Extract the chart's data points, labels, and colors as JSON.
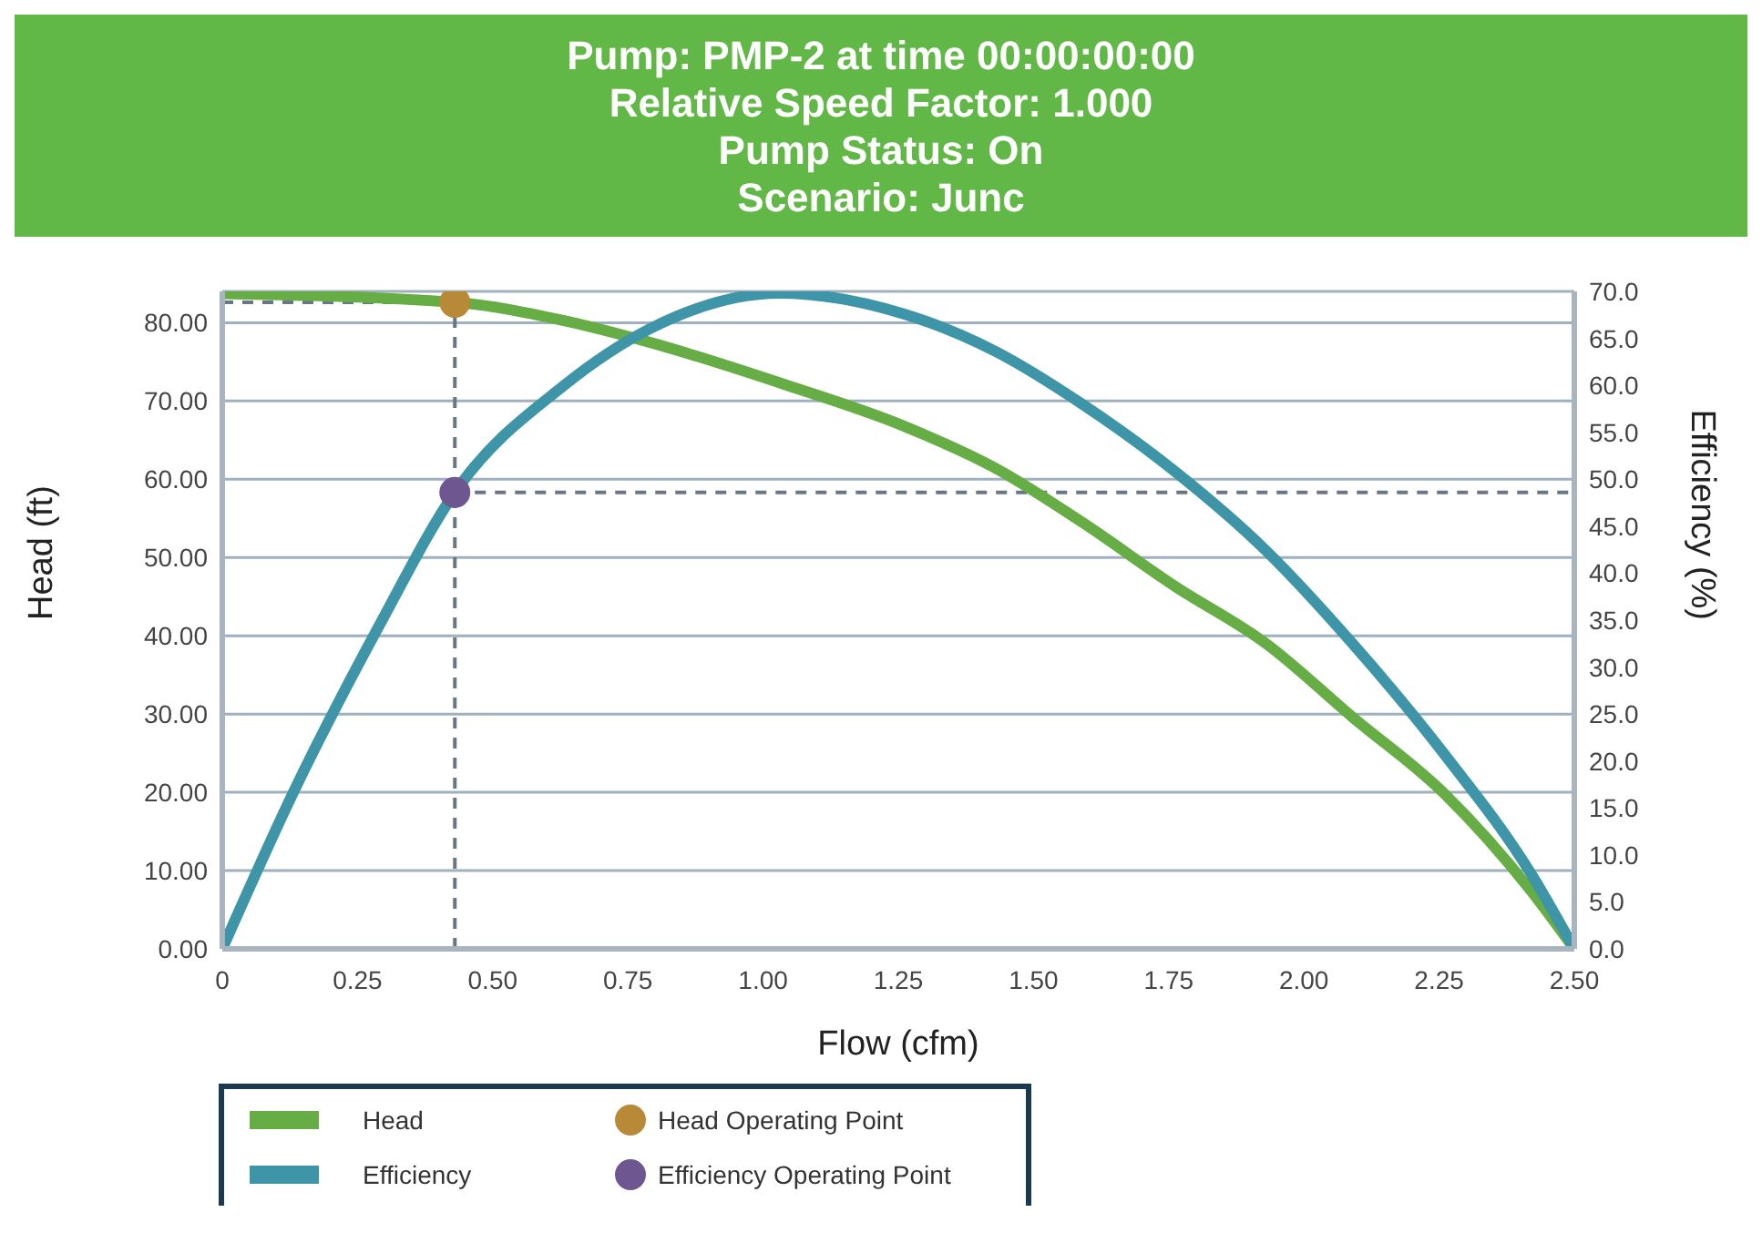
{
  "chart_data": {
    "type": "line",
    "title": "Pump: PMP-2 at time 00:00:00:00\nRelative Speed Factor: 1.000\nPump Status: On\nScenario: Junc",
    "xlabel": "Flow (cfm)",
    "ylabel": "Head (ft)",
    "y2label": "Efficiency (%)",
    "xlim": [
      0,
      2.5
    ],
    "ylim": [
      0,
      84
    ],
    "y2lim": [
      0,
      70
    ],
    "xticks": [
      0,
      {
        "value": 0.25,
        "label": "0.25"
      },
      {
        "value": 0.5,
        "label": "0.50"
      },
      {
        "value": 0.75,
        "label": "0.75"
      },
      {
        "value": 1,
        "label": "1.00"
      },
      {
        "value": 1.25,
        "label": "1.25"
      },
      {
        "value": 1.5,
        "label": "1.50"
      },
      {
        "value": 1.75,
        "label": "1.75"
      },
      {
        "value": 2,
        "label": "2.00"
      },
      {
        "value": 2.25,
        "label": "2.25"
      },
      {
        "value": 2.5,
        "label": "2.50"
      }
    ],
    "yticks": [
      {
        "value": 0,
        "label": "0.00"
      },
      {
        "value": 10,
        "label": "10.00"
      },
      {
        "value": 20,
        "label": "20.00"
      },
      {
        "value": 30,
        "label": "30.00"
      },
      {
        "value": 40,
        "label": "40.00"
      },
      {
        "value": 50,
        "label": "50.00"
      },
      {
        "value": 60,
        "label": "60.00"
      },
      {
        "value": 70,
        "label": "70.00"
      },
      {
        "value": 80,
        "label": "80.00"
      }
    ],
    "y2ticks": [
      {
        "value": 0,
        "label": "0.0"
      },
      {
        "value": 5,
        "label": "5.0"
      },
      {
        "value": 10,
        "label": "10.0"
      },
      {
        "value": 15,
        "label": "15.0"
      },
      {
        "value": 20,
        "label": "20.0"
      },
      {
        "value": 25,
        "label": "25.0"
      },
      {
        "value": 30,
        "label": "30.0"
      },
      {
        "value": 35,
        "label": "35.0"
      },
      {
        "value": 40,
        "label": "40.0"
      },
      {
        "value": 45,
        "label": "45.0"
      },
      {
        "value": 50,
        "label": "50.0"
      },
      {
        "value": 55,
        "label": "55.0"
      },
      {
        "value": 60,
        "label": "60.0"
      },
      {
        "value": 65,
        "label": "65.0"
      },
      {
        "value": 70,
        "label": "70.0"
      }
    ],
    "grid": "y",
    "legend": "bottom",
    "marker": "none",
    "series": [
      {
        "name": "Head",
        "color": "#66ad45",
        "x": [
          0,
          0.43,
          0.63,
          0.79,
          1.04,
          1.26,
          1.43,
          1.59,
          1.76,
          1.93,
          2.09,
          2.26,
          2.42,
          2.5
        ],
        "values": [
          83.7,
          82.6,
          80.3,
          77.5,
          72.1,
          66.8,
          61.4,
          54.5,
          46.4,
          39.0,
          29.6,
          19.8,
          7.4,
          0
        ]
      },
      {
        "name": "Efficiency",
        "axis": "y2",
        "color": "#3f95a8",
        "x": [
          0,
          0.13,
          0.29,
          0.43,
          0.63,
          0.79,
          1.03,
          1.26,
          1.43,
          1.59,
          1.76,
          1.93,
          2.09,
          2.26,
          2.42,
          2.5
        ],
        "values": [
          0,
          16.5,
          34.4,
          48.6,
          59.9,
          66.0,
          69.8,
          67.6,
          63.6,
          58.0,
          50.9,
          42.4,
          32.5,
          20.7,
          8.0,
          0
        ]
      },
      {
        "name": "Head Operating Point",
        "type": "scatter",
        "marker": "circle",
        "color": "#b88a38",
        "x": [
          0.43
        ],
        "values": [
          82.6
        ]
      },
      {
        "name": "Efficiency Operating Point",
        "type": "scatter",
        "marker": "circle",
        "axis": "y2",
        "color": "#6e5690",
        "x": [
          0.43
        ],
        "values": [
          48.6
        ]
      }
    ],
    "ref_lines": [
      {
        "axis": "x",
        "value": 0.43,
        "color": "#6b7588",
        "line_style": "dashed"
      },
      {
        "axis": "y",
        "value": 82.6,
        "color": "#6b7588",
        "line_style": "dashed"
      },
      {
        "axis": "y2",
        "value": 48.6,
        "color": "#6b7588",
        "line_style": "dashed"
      }
    ]
  }
}
